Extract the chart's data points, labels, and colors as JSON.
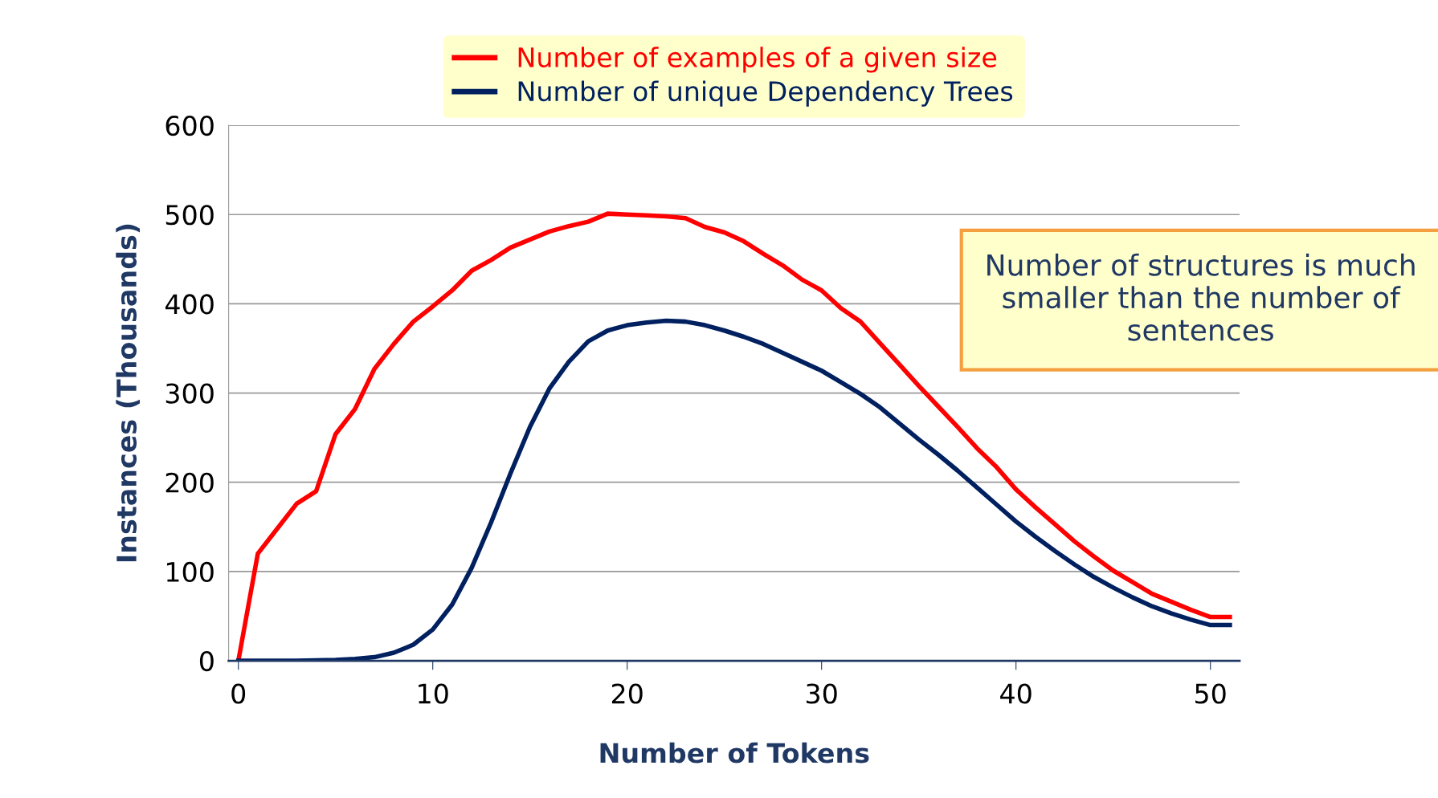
{
  "chart_data": {
    "type": "line",
    "xlabel": "Number of Tokens",
    "ylabel": "Instances (Thousands)",
    "x": [
      0,
      1,
      2,
      3,
      4,
      5,
      6,
      7,
      8,
      9,
      10,
      11,
      12,
      13,
      14,
      15,
      16,
      17,
      18,
      19,
      20,
      21,
      22,
      23,
      24,
      25,
      26,
      27,
      28,
      29,
      30,
      31,
      32,
      33,
      34,
      35,
      36,
      37,
      38,
      39,
      40,
      41,
      42,
      43,
      44,
      45,
      46,
      47,
      48,
      49,
      50,
      51
    ],
    "series": [
      {
        "name": "Number of examples of a given size",
        "color": "#ff0000",
        "values": [
          0,
          120,
          148,
          176,
          190,
          254,
          282,
          327,
          355,
          380,
          397,
          415,
          437,
          449,
          463,
          472,
          481,
          487,
          492,
          501,
          500,
          499,
          498,
          496,
          486,
          480,
          470,
          456,
          443,
          427,
          415,
          395,
          380,
          356,
          332,
          308,
          285,
          262,
          238,
          217,
          192,
          172,
          153,
          134,
          117,
          101,
          88,
          75,
          66,
          57,
          49,
          49
        ]
      },
      {
        "name": "Number of unique Dependency Trees",
        "color": "#002060",
        "values": [
          0,
          0,
          0,
          0,
          0.5,
          1,
          2,
          4,
          9,
          18,
          35,
          63,
          104,
          155,
          210,
          262,
          305,
          335,
          358,
          370,
          376,
          379,
          381,
          380,
          376,
          370,
          363,
          355,
          345,
          335,
          325,
          312,
          299,
          284,
          266,
          248,
          231,
          213,
          194,
          175,
          156,
          139,
          123,
          108,
          94,
          82,
          71,
          61,
          53,
          46,
          40,
          40
        ]
      }
    ],
    "xlim": [
      -0.5,
      51.5
    ],
    "xticks": [
      0,
      10,
      20,
      30,
      40,
      50
    ],
    "ylim": [
      0,
      600
    ],
    "yticks": [
      0,
      100,
      200,
      300,
      400,
      500,
      600
    ],
    "grid": "y",
    "legend": "top",
    "marker": "none",
    "line_style": "solid",
    "annotations": [
      "Number of structures is much smaller than the number of sentences"
    ]
  }
}
